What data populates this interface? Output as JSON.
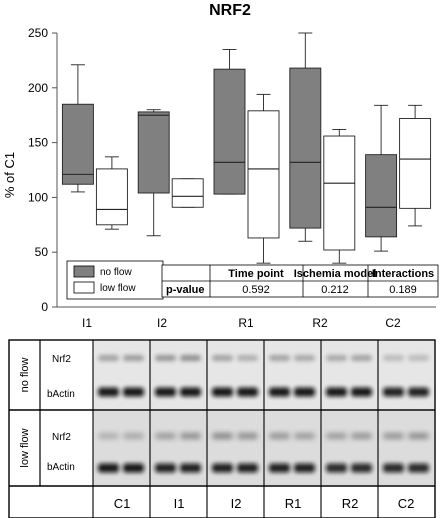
{
  "chart_data": {
    "type": "boxplot",
    "title": "NRF2",
    "ylabel": "% of C1",
    "ylim": [
      0,
      250
    ],
    "yticks": [
      "0",
      "50",
      "100",
      "150",
      "200",
      "250"
    ],
    "categories": [
      "I1",
      "I2",
      "R1",
      "R2",
      "C2"
    ],
    "grid": false,
    "legend_position": "bottom-left",
    "series": [
      {
        "name": "no flow",
        "color": "#808080",
        "boxes": [
          {
            "min": 105,
            "q1": 112,
            "median": 121,
            "q3": 185,
            "max": 221
          },
          {
            "min": 65,
            "q1": 104,
            "median": 175,
            "q3": 178,
            "max": 180
          },
          {
            "min": 103,
            "q1": 103,
            "median": 132,
            "q3": 217,
            "max": 235
          },
          {
            "min": 60,
            "q1": 72,
            "median": 132,
            "q3": 218,
            "max": 250
          },
          {
            "min": 51,
            "q1": 64,
            "median": 91,
            "q3": 139,
            "max": 184
          }
        ]
      },
      {
        "name": "low flow",
        "color": "#ffffff",
        "boxes": [
          {
            "min": 71,
            "q1": 75,
            "median": 89,
            "q3": 126,
            "max": 137
          },
          {
            "min": 91,
            "q1": 91,
            "median": 101,
            "q3": 117,
            "max": 117
          },
          {
            "min": 40,
            "q1": 63,
            "median": 126,
            "q3": 179,
            "max": 194
          },
          {
            "min": 40,
            "q1": 52,
            "median": 113,
            "q3": 156,
            "max": 162
          },
          {
            "min": 74,
            "q1": 90,
            "median": 135,
            "q3": 172,
            "max": 184
          }
        ]
      }
    ],
    "stats_table": {
      "headers": [
        "Time point",
        "Ischemia model",
        "Interactions"
      ],
      "row_label": "p-value",
      "values": [
        "0.592",
        "0.212",
        "0.189"
      ]
    }
  },
  "blot": {
    "conditions": [
      "no flow",
      "low flow"
    ],
    "proteins": [
      "Nrf2",
      "bActin"
    ],
    "lanes": [
      "C1",
      "I1",
      "I2",
      "R1",
      "R2",
      "C2"
    ]
  }
}
